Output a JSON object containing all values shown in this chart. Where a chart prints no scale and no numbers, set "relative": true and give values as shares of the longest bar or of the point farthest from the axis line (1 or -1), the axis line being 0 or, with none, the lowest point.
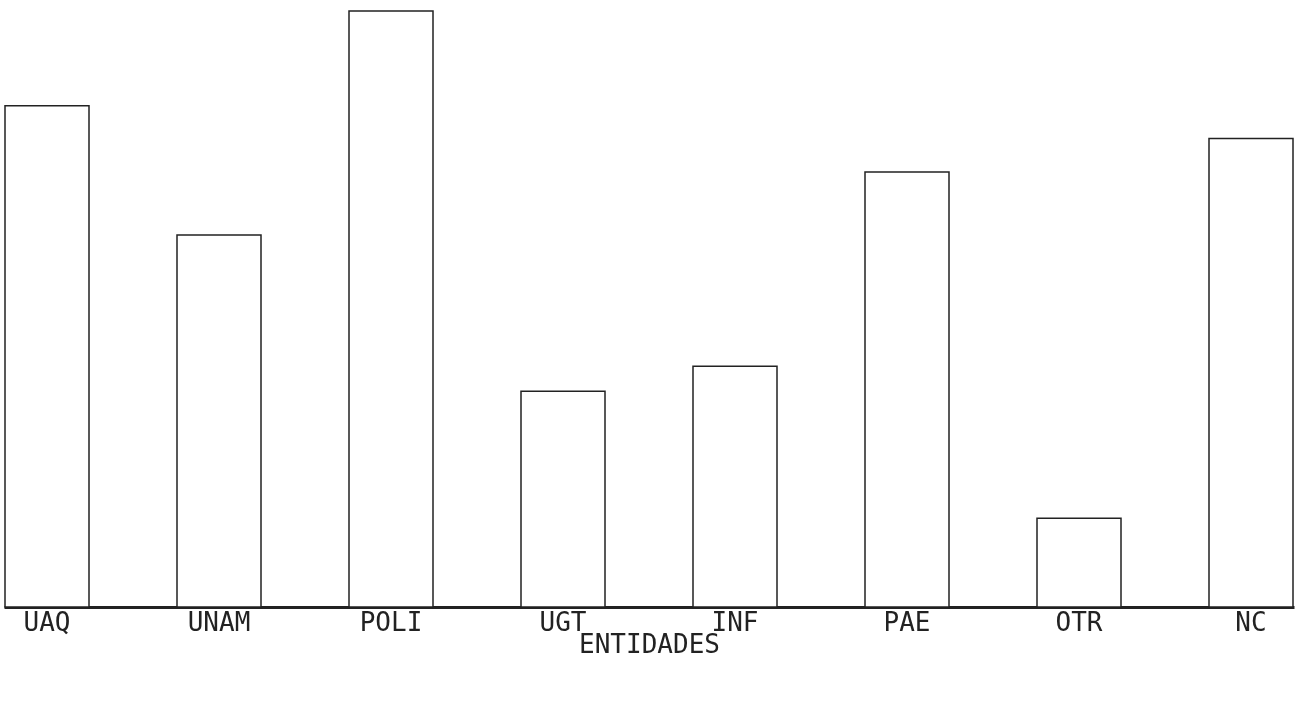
{
  "chart_data": {
    "type": "bar",
    "relative": true,
    "xlabel": "ENTIDADES",
    "categories": [
      "UAQ",
      "UNAM",
      "POLI",
      "UGT",
      "INF",
      "PAE",
      "OTR",
      "NC"
    ],
    "values": [
      0.841,
      0.624,
      1,
      0.362,
      0.404,
      0.73,
      0.149,
      0.786
    ],
    "color": "#ffffff",
    "grid": false,
    "legend": false
  }
}
